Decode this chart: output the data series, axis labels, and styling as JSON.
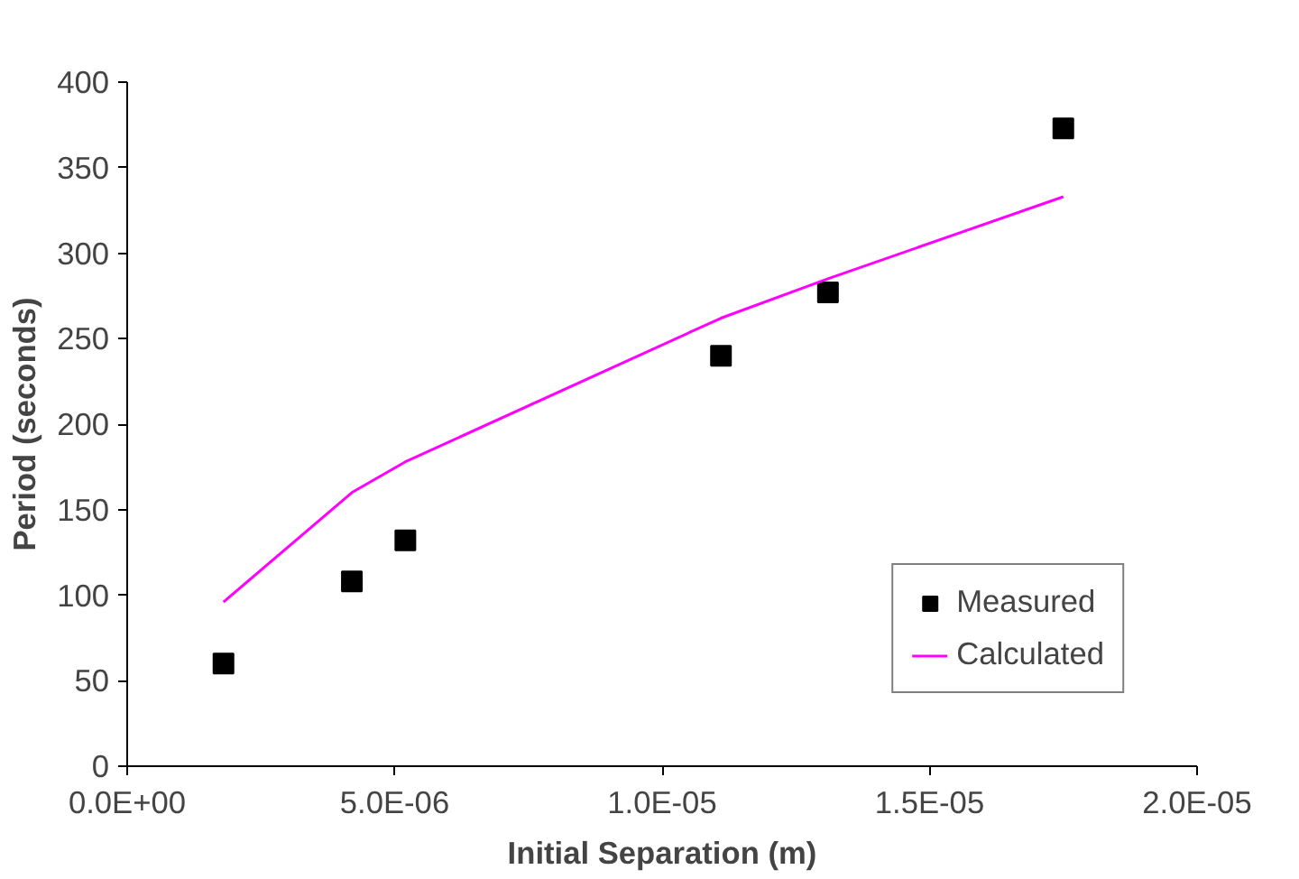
{
  "chart_data": {
    "type": "scatter",
    "xlabel": "Initial Separation (m)",
    "ylabel": "Period (seconds)",
    "x": [
      1.8e-06,
      4.2e-06,
      5.2e-06,
      1.11e-05,
      1.31e-05,
      1.75e-05
    ],
    "series": [
      {
        "name": "Measured",
        "color": "#000000",
        "marker": "square",
        "values": [
          60,
          108,
          132,
          240,
          277,
          373
        ]
      },
      {
        "name": "Calculated",
        "type": "line",
        "color": "#ff00ff",
        "values": [
          96,
          160,
          178,
          262,
          285,
          333
        ]
      }
    ],
    "xlim": [
      0,
      2e-05
    ],
    "xticks": [
      {
        "value": 0,
        "label": "0.0E+00"
      },
      {
        "value": 5e-06,
        "label": "5.0E-06"
      },
      {
        "value": 1e-05,
        "label": "1.0E-05"
      },
      {
        "value": 1.5e-05,
        "label": "1.5E-05"
      },
      {
        "value": 2e-05,
        "label": "2.0E-05"
      }
    ],
    "ylim": [
      0,
      400
    ],
    "yticks": [
      0,
      50,
      100,
      150,
      200,
      250,
      300,
      350,
      400
    ],
    "grid": false,
    "legend": "bottom right"
  }
}
